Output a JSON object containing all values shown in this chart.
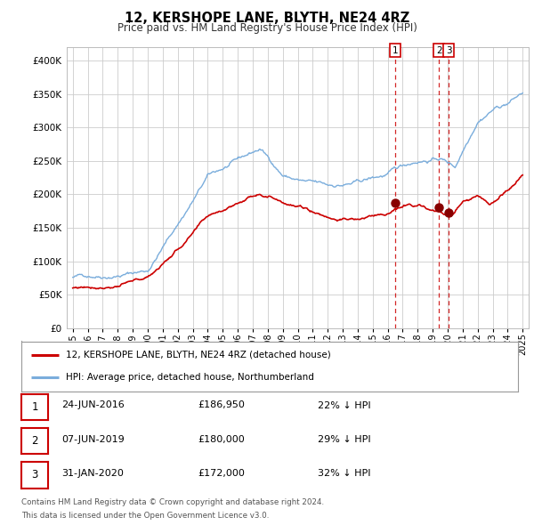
{
  "title": "12, KERSHOPE LANE, BLYTH, NE24 4RZ",
  "subtitle": "Price paid vs. HM Land Registry's House Price Index (HPI)",
  "legend_label_red": "12, KERSHOPE LANE, BLYTH, NE24 4RZ (detached house)",
  "legend_label_blue": "HPI: Average price, detached house, Northumberland",
  "footer_line1": "Contains HM Land Registry data © Crown copyright and database right 2024.",
  "footer_line2": "This data is licensed under the Open Government Licence v3.0.",
  "transactions": [
    {
      "num": 1,
      "date": "24-JUN-2016",
      "price": "£186,950",
      "pct": "22% ↓ HPI",
      "year": 2016.48
    },
    {
      "num": 2,
      "date": "07-JUN-2019",
      "price": "£180,000",
      "pct": "29% ↓ HPI",
      "year": 2019.43
    },
    {
      "num": 3,
      "date": "31-JAN-2020",
      "price": "£172,000",
      "pct": "32% ↓ HPI",
      "year": 2020.08
    }
  ],
  "transaction_values": [
    186950,
    180000,
    172000
  ],
  "transaction_years": [
    2016.48,
    2019.43,
    2020.08
  ],
  "ylim": [
    0,
    420000
  ],
  "xlim_start": 1994.6,
  "xlim_end": 2025.4,
  "background_color": "#ffffff",
  "grid_color": "#cccccc",
  "red_color": "#cc0000",
  "blue_color": "#7aaddc"
}
